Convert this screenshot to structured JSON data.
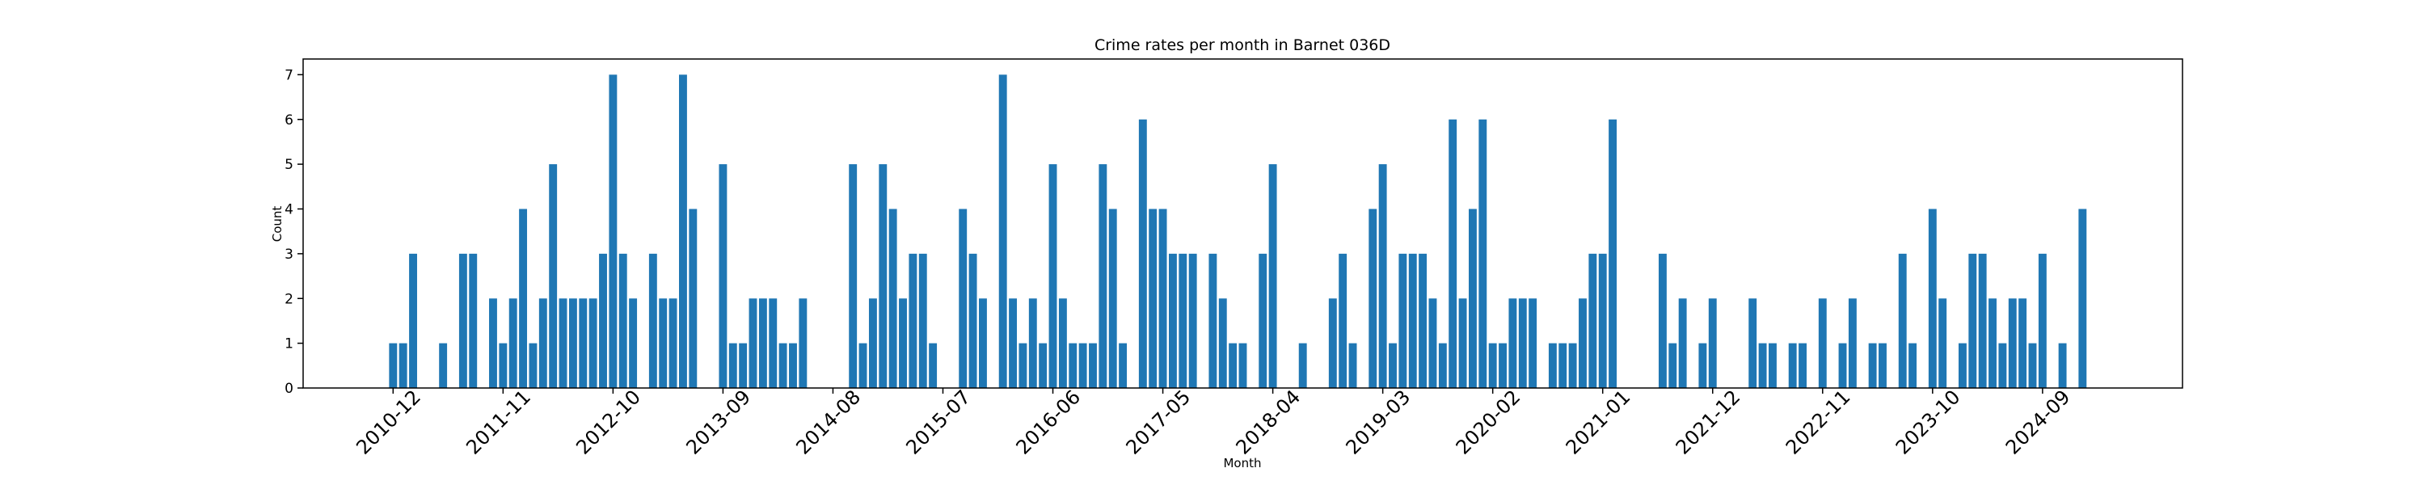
{
  "chart_data": {
    "type": "bar",
    "title": "Crime rates per month in Barnet 036D",
    "xlabel": "Month",
    "ylabel": "Count",
    "color": "#1f77b4",
    "x": [
      "2010-12",
      "2011-01",
      "2011-02",
      "2011-05",
      "2011-07",
      "2011-08",
      "2011-10",
      "2011-11",
      "2011-12",
      "2012-01",
      "2012-02",
      "2012-03",
      "2012-04",
      "2012-05",
      "2012-06",
      "2012-07",
      "2012-08",
      "2012-09",
      "2012-10",
      "2012-11",
      "2012-12",
      "2013-02",
      "2013-03",
      "2013-04",
      "2013-05",
      "2013-06",
      "2013-09",
      "2013-10",
      "2013-11",
      "2013-12",
      "2014-01",
      "2014-02",
      "2014-03",
      "2014-04",
      "2014-05",
      "2014-10",
      "2014-11",
      "2014-12",
      "2015-01",
      "2015-02",
      "2015-03",
      "2015-04",
      "2015-05",
      "2015-06",
      "2015-09",
      "2015-10",
      "2015-11",
      "2016-01",
      "2016-02",
      "2016-03",
      "2016-04",
      "2016-05",
      "2016-06",
      "2016-07",
      "2016-08",
      "2016-09",
      "2016-10",
      "2016-11",
      "2016-12",
      "2017-01",
      "2017-03",
      "2017-04",
      "2017-05",
      "2017-06",
      "2017-07",
      "2017-08",
      "2017-10",
      "2017-11",
      "2017-12",
      "2018-01",
      "2018-03",
      "2018-04",
      "2018-07",
      "2018-10",
      "2018-11",
      "2018-12",
      "2019-02",
      "2019-03",
      "2019-04",
      "2019-05",
      "2019-06",
      "2019-07",
      "2019-08",
      "2019-09",
      "2019-10",
      "2019-11",
      "2019-12",
      "2020-01",
      "2020-02",
      "2020-03",
      "2020-04",
      "2020-05",
      "2020-06",
      "2020-08",
      "2020-09",
      "2020-10",
      "2020-11",
      "2020-12",
      "2021-01",
      "2021-02",
      "2021-07",
      "2021-08",
      "2021-09",
      "2021-11",
      "2021-12",
      "2022-04",
      "2022-05",
      "2022-06",
      "2022-08",
      "2022-09",
      "2022-11",
      "2023-01",
      "2023-02",
      "2023-04",
      "2023-05",
      "2023-07",
      "2023-08",
      "2023-10",
      "2023-11",
      "2024-01",
      "2024-02",
      "2024-03",
      "2024-04",
      "2024-05",
      "2024-06",
      "2024-07",
      "2024-08",
      "2024-09",
      "2024-11",
      "2025-01"
    ],
    "values": [
      1,
      1,
      3,
      1,
      3,
      3,
      2,
      1,
      2,
      4,
      1,
      2,
      5,
      2,
      2,
      2,
      2,
      3,
      7,
      3,
      2,
      3,
      2,
      2,
      7,
      4,
      5,
      1,
      1,
      2,
      2,
      2,
      1,
      1,
      2,
      5,
      1,
      2,
      5,
      4,
      2,
      3,
      3,
      1,
      4,
      3,
      2,
      7,
      2,
      1,
      2,
      1,
      5,
      2,
      1,
      1,
      1,
      5,
      4,
      1,
      6,
      4,
      4,
      3,
      3,
      3,
      3,
      2,
      1,
      1,
      3,
      5,
      1,
      2,
      3,
      1,
      4,
      5,
      1,
      3,
      3,
      3,
      2,
      1,
      6,
      2,
      4,
      6,
      1,
      1,
      2,
      2,
      2,
      1,
      1,
      1,
      2,
      3,
      3,
      6,
      3,
      1,
      2,
      1,
      2,
      2,
      1,
      1,
      1,
      1,
      2,
      1,
      2,
      1,
      1,
      3,
      1,
      4,
      2,
      1,
      3,
      3,
      2,
      1,
      2,
      2,
      1,
      3,
      1,
      4
    ],
    "xlim": [
      "2010-03",
      "2025-11"
    ],
    "xticks": [
      "2010-12",
      "2011-11",
      "2012-10",
      "2013-09",
      "2014-08",
      "2015-07",
      "2016-06",
      "2017-05",
      "2018-04",
      "2019-03",
      "2020-02",
      "2021-01",
      "2021-12",
      "2022-11",
      "2023-10",
      "2024-09"
    ],
    "ylim": [
      0,
      7.35
    ],
    "yticks": [
      0,
      1,
      2,
      3,
      4,
      5,
      6,
      7
    ]
  }
}
